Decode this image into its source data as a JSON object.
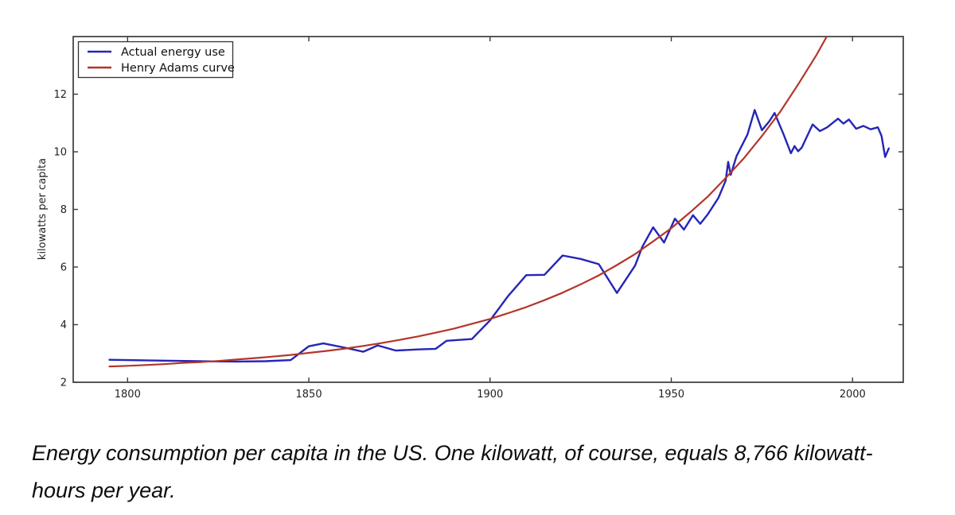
{
  "figure": {
    "y_axis_label": "kilowatts per capita",
    "x_ticks": [
      1800,
      1850,
      1900,
      1950,
      2000
    ],
    "y_ticks": [
      2,
      4,
      6,
      8,
      10,
      12
    ],
    "axis_color": "#3b3b3b",
    "background_color": "#ffffff"
  },
  "chart_data": {
    "type": "line",
    "title": "",
    "xlabel": "",
    "ylabel": "kilowatts per capita",
    "xlim": [
      1785,
      2014
    ],
    "ylim": [
      2,
      14
    ],
    "grid": false,
    "legend_position": "upper left",
    "x_tick_labels": [
      "1800",
      "1850",
      "1900",
      "1950",
      "2000"
    ],
    "y_tick_labels": [
      "2",
      "4",
      "6",
      "8",
      "10",
      "12"
    ],
    "series": [
      {
        "name": "Actual energy use",
        "color": "#2525b8",
        "line_width": 2.4,
        "points": [
          [
            1795,
            2.78
          ],
          [
            1800,
            2.77
          ],
          [
            1810,
            2.75
          ],
          [
            1820,
            2.73
          ],
          [
            1830,
            2.72
          ],
          [
            1838,
            2.73
          ],
          [
            1845,
            2.77
          ],
          [
            1850,
            3.25
          ],
          [
            1854,
            3.35
          ],
          [
            1860,
            3.2
          ],
          [
            1865,
            3.06
          ],
          [
            1869,
            3.28
          ],
          [
            1874,
            3.1
          ],
          [
            1880,
            3.14
          ],
          [
            1885,
            3.16
          ],
          [
            1888,
            3.44
          ],
          [
            1895,
            3.5
          ],
          [
            1900,
            4.15
          ],
          [
            1905,
            5.0
          ],
          [
            1910,
            5.72
          ],
          [
            1915,
            5.73
          ],
          [
            1920,
            6.4
          ],
          [
            1925,
            6.28
          ],
          [
            1930,
            6.1
          ],
          [
            1935,
            5.1
          ],
          [
            1940,
            6.05
          ],
          [
            1942,
            6.7
          ],
          [
            1945,
            7.38
          ],
          [
            1948,
            6.85
          ],
          [
            1951,
            7.68
          ],
          [
            1953.5,
            7.3
          ],
          [
            1956,
            7.8
          ],
          [
            1958,
            7.5
          ],
          [
            1960,
            7.82
          ],
          [
            1963,
            8.4
          ],
          [
            1965,
            9.0
          ],
          [
            1965.7,
            9.65
          ],
          [
            1966.4,
            9.2
          ],
          [
            1968,
            9.85
          ],
          [
            1971,
            10.6
          ],
          [
            1973,
            11.45
          ],
          [
            1975,
            10.75
          ],
          [
            1977,
            11.05
          ],
          [
            1978.5,
            11.35
          ],
          [
            1981,
            10.6
          ],
          [
            1983,
            9.95
          ],
          [
            1984,
            10.2
          ],
          [
            1985,
            10.02
          ],
          [
            1986,
            10.15
          ],
          [
            1989,
            10.95
          ],
          [
            1991,
            10.72
          ],
          [
            1993,
            10.85
          ],
          [
            1996,
            11.15
          ],
          [
            1997.5,
            10.98
          ],
          [
            1999,
            11.12
          ],
          [
            2001,
            10.8
          ],
          [
            2003,
            10.9
          ],
          [
            2005,
            10.78
          ],
          [
            2007,
            10.85
          ],
          [
            2008,
            10.55
          ],
          [
            2009,
            9.82
          ],
          [
            2010,
            10.12
          ]
        ]
      },
      {
        "name": "Henry Adams curve",
        "color": "#b43529",
        "line_width": 2.2,
        "points": [
          [
            1795,
            2.55
          ],
          [
            1800,
            2.57
          ],
          [
            1805,
            2.6
          ],
          [
            1810,
            2.63
          ],
          [
            1815,
            2.67
          ],
          [
            1820,
            2.7
          ],
          [
            1825,
            2.74
          ],
          [
            1830,
            2.79
          ],
          [
            1835,
            2.84
          ],
          [
            1840,
            2.89
          ],
          [
            1845,
            2.95
          ],
          [
            1850,
            3.02
          ],
          [
            1855,
            3.09
          ],
          [
            1860,
            3.17
          ],
          [
            1865,
            3.26
          ],
          [
            1870,
            3.36
          ],
          [
            1875,
            3.47
          ],
          [
            1880,
            3.59
          ],
          [
            1885,
            3.72
          ],
          [
            1890,
            3.86
          ],
          [
            1895,
            4.03
          ],
          [
            1900,
            4.2
          ],
          [
            1905,
            4.4
          ],
          [
            1910,
            4.61
          ],
          [
            1915,
            4.85
          ],
          [
            1920,
            5.11
          ],
          [
            1925,
            5.4
          ],
          [
            1930,
            5.71
          ],
          [
            1935,
            6.07
          ],
          [
            1940,
            6.45
          ],
          [
            1945,
            6.89
          ],
          [
            1950,
            7.35
          ],
          [
            1955,
            7.88
          ],
          [
            1960,
            8.44
          ],
          [
            1965,
            9.09
          ],
          [
            1970,
            9.77
          ],
          [
            1975,
            10.55
          ],
          [
            1980,
            11.38
          ],
          [
            1985,
            12.34
          ],
          [
            1990,
            13.35
          ],
          [
            1994,
            14.25
          ]
        ]
      }
    ]
  },
  "caption": {
    "line1": "Energy consumption per capita in the US. One kilowatt, of course, equals 8,766 kilowatt-",
    "line2": "hours per year.",
    "text": "Energy consumption per capita in the US. One kilowatt, of course, equals 8,766 kilowatt-hours per year."
  }
}
